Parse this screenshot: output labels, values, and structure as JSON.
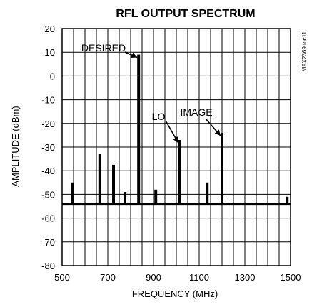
{
  "chart_data": {
    "type": "line",
    "title": "RFL OUTPUT SPECTRUM",
    "xlabel": "FREQUENCY (MHz)",
    "ylabel": "AMPLITUDE (dBm)",
    "xlim": [
      500,
      1500
    ],
    "ylim": [
      -80,
      20
    ],
    "x_ticks": [
      500,
      700,
      900,
      1100,
      1300,
      1500
    ],
    "y_ticks": [
      20,
      10,
      0,
      -10,
      -20,
      -30,
      -40,
      -50,
      -60,
      -70,
      -80
    ],
    "grid": true,
    "noise_floor": -54,
    "peaks": [
      {
        "x": 545,
        "y": -45
      },
      {
        "x": 665,
        "y": -33
      },
      {
        "x": 725,
        "y": -37.5
      },
      {
        "x": 775,
        "y": -49
      },
      {
        "x": 835,
        "y": 9
      },
      {
        "x": 910,
        "y": -48
      },
      {
        "x": 1015,
        "y": -27
      },
      {
        "x": 1135,
        "y": -45
      },
      {
        "x": 1200,
        "y": -24
      },
      {
        "x": 1485,
        "y": -51
      }
    ],
    "annotations": [
      {
        "text": "DESIRED",
        "x": 835,
        "y": 9
      },
      {
        "text": "LO",
        "x": 1015,
        "y": -27
      },
      {
        "text": "IMAGE",
        "x": 1200,
        "y": -24
      }
    ],
    "side_note": "MAX2369 toc11"
  }
}
